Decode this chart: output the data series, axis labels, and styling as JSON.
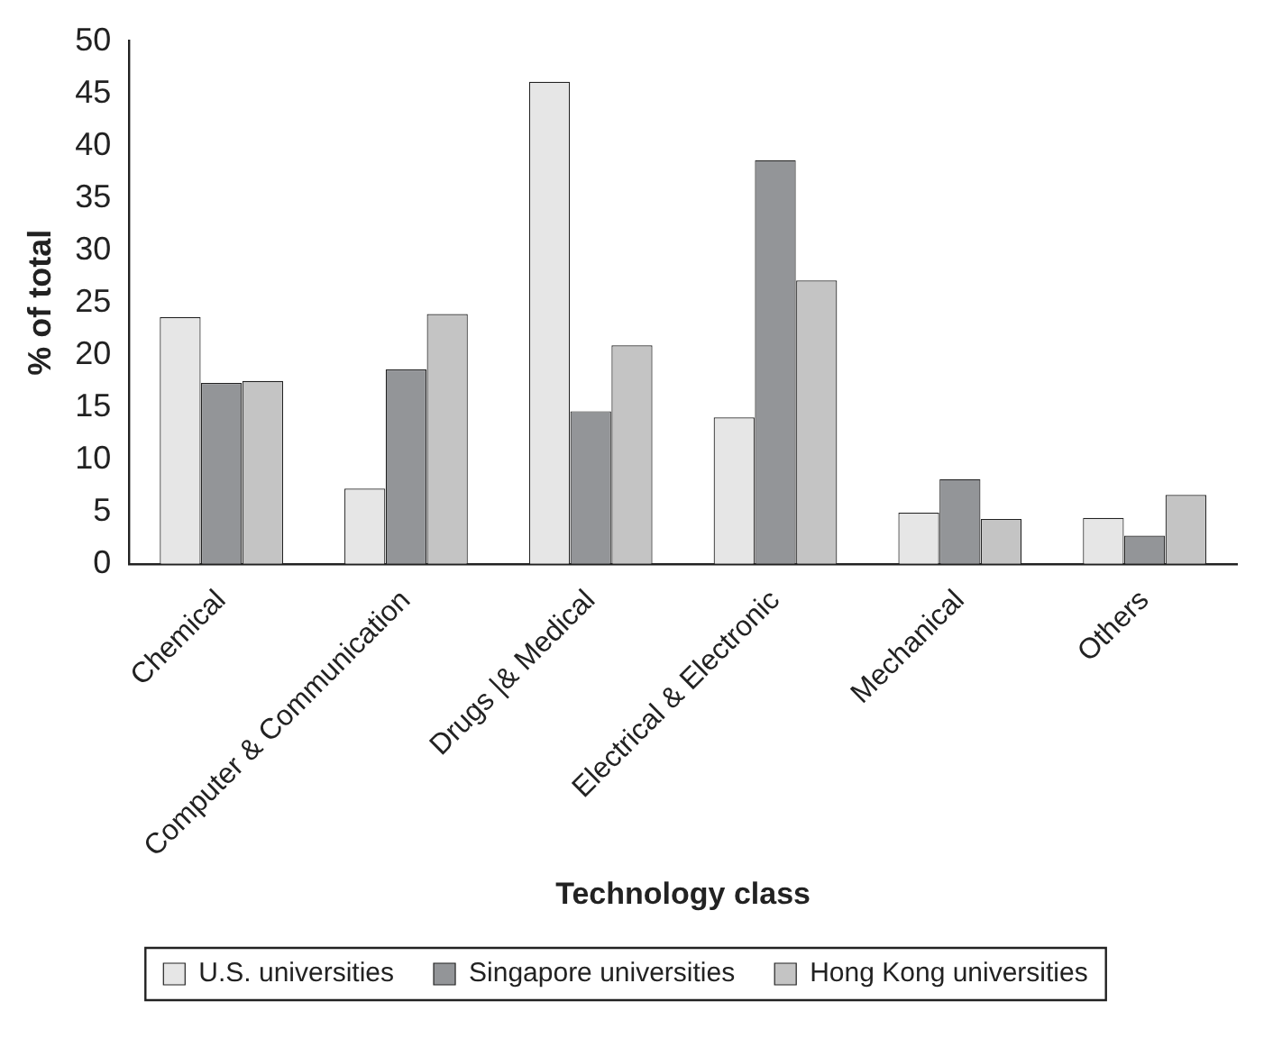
{
  "chart_data": {
    "type": "bar",
    "xlabel": "Technology class",
    "ylabel": "% of total",
    "categories": [
      "Chemical",
      "Computer & Communication",
      "Drugs |& Medical",
      "Electrical & Electronic",
      "Mechanical",
      "Others"
    ],
    "series": [
      {
        "name": "U.S. universities",
        "color": "#e6e6e6",
        "values": [
          23.6,
          7.2,
          46.1,
          14.0,
          4.9,
          4.4
        ]
      },
      {
        "name": "Singapore universities",
        "color": "#939598",
        "values": [
          17.3,
          18.6,
          14.6,
          38.6,
          8.1,
          2.7
        ]
      },
      {
        "name": "Hong Kong universities",
        "color": "#c4c4c4",
        "values": [
          17.5,
          23.9,
          20.9,
          27.1,
          4.3,
          6.6
        ]
      }
    ],
    "ylim": [
      0,
      50
    ],
    "yticks": [
      0,
      5,
      10,
      15,
      20,
      25,
      30,
      35,
      40,
      45,
      50
    ],
    "grid": false,
    "legend": "bottom"
  }
}
